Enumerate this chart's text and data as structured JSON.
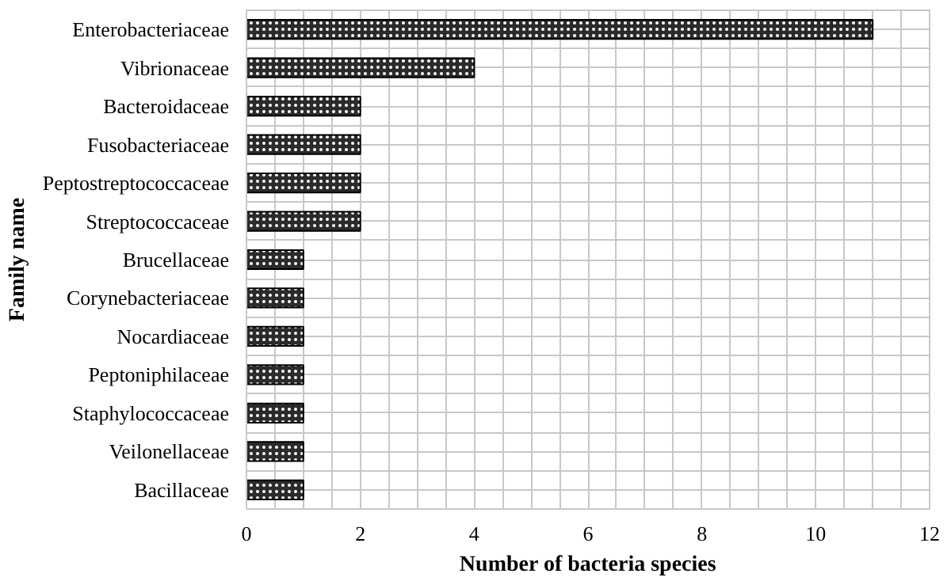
{
  "chart_data": {
    "type": "bar",
    "orientation": "horizontal",
    "xlabel": "Number of bacteria species",
    "ylabel": "Family name",
    "categories": [
      "Enterobacteriaceae",
      "Vibrionaceae",
      "Bacteroidaceae",
      "Fusobacteriaceae",
      "Peptostreptococcaceae",
      "Streptococcaceae",
      "Brucellaceae",
      "Corynebacteriaceae",
      "Nocardiaceae",
      "Peptoniphilaceae",
      "Staphylococcaceae",
      "Veilonellaceae",
      "Bacillaceae"
    ],
    "values": [
      11,
      4,
      2,
      2,
      2,
      2,
      1,
      1,
      1,
      1,
      1,
      1,
      1
    ],
    "color": "#2b2b2b",
    "xlim": [
      0,
      12
    ],
    "xticks": [
      0,
      {
        "value": 0.5,
        "label": null
      },
      {
        "value": 1,
        "label": null
      },
      {
        "value": 1.5,
        "label": null
      },
      2,
      {
        "value": 2.5,
        "label": null
      },
      {
        "value": 3,
        "label": null
      },
      {
        "value": 3.5,
        "label": null
      },
      4,
      {
        "value": 4.5,
        "label": null
      },
      {
        "value": 5,
        "label": null
      },
      {
        "value": 5.5,
        "label": null
      },
      6,
      {
        "value": 6.5,
        "label": null
      },
      {
        "value": 7,
        "label": null
      },
      {
        "value": 7.5,
        "label": null
      },
      8,
      {
        "value": 8.5,
        "label": null
      },
      {
        "value": 9,
        "label": null
      },
      {
        "value": 9.5,
        "label": null
      },
      10,
      {
        "value": 10.5,
        "label": null
      },
      {
        "value": 11,
        "label": null
      },
      {
        "value": 11.5,
        "label": null
      },
      12
    ],
    "grid": true
  }
}
